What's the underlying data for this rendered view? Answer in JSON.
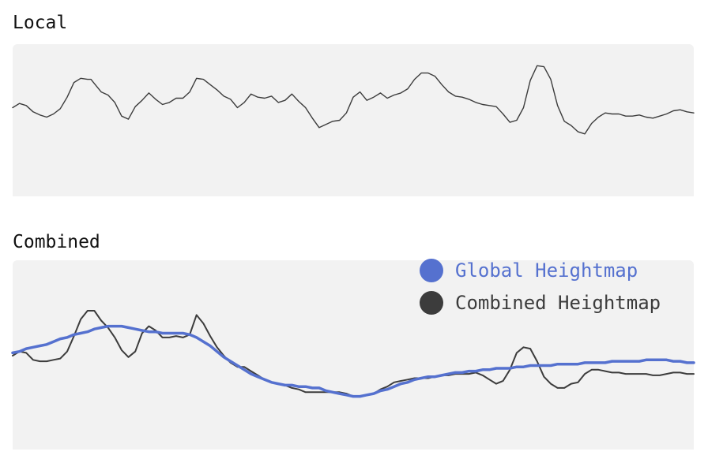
{
  "chart_data": [
    {
      "type": "area",
      "title": "Local",
      "x": [
        0,
        0.01,
        0.02,
        0.03,
        0.04,
        0.05,
        0.06,
        0.07,
        0.08,
        0.09,
        0.1,
        0.11,
        0.115,
        0.12,
        0.13,
        0.14,
        0.15,
        0.16,
        0.17,
        0.18,
        0.19,
        0.2,
        0.21,
        0.22,
        0.23,
        0.24,
        0.25,
        0.26,
        0.27,
        0.28,
        0.29,
        0.3,
        0.31,
        0.32,
        0.33,
        0.34,
        0.35,
        0.36,
        0.37,
        0.38,
        0.39,
        0.4,
        0.41,
        0.42,
        0.43,
        0.44,
        0.45,
        0.46,
        0.47,
        0.48,
        0.49,
        0.5,
        0.51,
        0.52,
        0.53,
        0.54,
        0.55,
        0.56,
        0.57,
        0.58,
        0.59,
        0.6,
        0.61,
        0.62,
        0.63,
        0.64,
        0.65,
        0.66,
        0.67,
        0.68,
        0.69,
        0.7,
        0.71,
        0.72,
        0.73,
        0.74,
        0.75,
        0.76,
        0.77,
        0.78,
        0.79,
        0.8,
        0.81,
        0.82,
        0.83,
        0.84,
        0.85,
        0.86,
        0.87,
        0.88,
        0.89,
        0.9,
        0.91,
        0.92,
        0.93,
        0.94,
        0.95,
        0.96,
        0.97,
        0.98,
        0.99,
        1.0
      ],
      "series": [
        {
          "values": [
            0.53,
            0.57,
            0.55,
            0.49,
            0.46,
            0.44,
            0.47,
            0.52,
            0.63,
            0.77,
            0.81,
            0.8,
            0.8,
            0.76,
            0.68,
            0.65,
            0.58,
            0.45,
            0.42,
            0.54,
            0.6,
            0.67,
            0.61,
            0.56,
            0.58,
            0.62,
            0.62,
            0.68,
            0.81,
            0.8,
            0.75,
            0.7,
            0.64,
            0.61,
            0.53,
            0.58,
            0.66,
            0.63,
            0.62,
            0.64,
            0.58,
            0.6,
            0.66,
            0.59,
            0.53,
            0.43,
            0.34,
            0.37,
            0.4,
            0.41,
            0.48,
            0.63,
            0.68,
            0.6,
            0.63,
            0.67,
            0.62,
            0.65,
            0.67,
            0.71,
            0.8,
            0.86,
            0.86,
            0.83,
            0.75,
            0.68,
            0.64,
            0.63,
            0.61,
            0.58,
            0.56,
            0.55,
            0.54,
            0.47,
            0.39,
            0.41,
            0.53,
            0.79,
            0.93,
            0.92,
            0.8,
            0.55,
            0.4,
            0.36,
            0.3,
            0.28,
            0.38,
            0.44,
            0.48,
            0.47,
            0.47,
            0.45,
            0.45,
            0.46,
            0.44,
            0.43,
            0.45,
            0.47,
            0.5,
            0.51,
            0.49,
            0.48
          ],
          "color": "#3c3c3c"
        }
      ],
      "ylim": [
        0,
        1
      ]
    },
    {
      "type": "area",
      "title": "Combined",
      "x": [
        0,
        0.01,
        0.02,
        0.03,
        0.04,
        0.05,
        0.06,
        0.07,
        0.08,
        0.09,
        0.1,
        0.11,
        0.115,
        0.12,
        0.13,
        0.14,
        0.15,
        0.16,
        0.17,
        0.18,
        0.19,
        0.2,
        0.21,
        0.22,
        0.23,
        0.24,
        0.25,
        0.26,
        0.27,
        0.28,
        0.29,
        0.3,
        0.31,
        0.32,
        0.33,
        0.34,
        0.35,
        0.36,
        0.37,
        0.38,
        0.39,
        0.4,
        0.41,
        0.42,
        0.43,
        0.44,
        0.45,
        0.46,
        0.47,
        0.48,
        0.49,
        0.5,
        0.51,
        0.52,
        0.53,
        0.54,
        0.55,
        0.56,
        0.57,
        0.58,
        0.59,
        0.6,
        0.61,
        0.62,
        0.63,
        0.64,
        0.65,
        0.66,
        0.67,
        0.68,
        0.69,
        0.7,
        0.71,
        0.72,
        0.73,
        0.74,
        0.75,
        0.76,
        0.77,
        0.78,
        0.79,
        0.8,
        0.81,
        0.82,
        0.83,
        0.84,
        0.85,
        0.86,
        0.87,
        0.88,
        0.89,
        0.9,
        0.91,
        0.92,
        0.93,
        0.94,
        0.95,
        0.96,
        0.97,
        0.98,
        0.99,
        1.0
      ],
      "series": [
        {
          "name": "Global Heightmap",
          "values": [
            0.52,
            0.53,
            0.55,
            0.56,
            0.57,
            0.58,
            0.6,
            0.62,
            0.63,
            0.65,
            0.66,
            0.67,
            0.68,
            0.69,
            0.7,
            0.71,
            0.71,
            0.71,
            0.7,
            0.69,
            0.68,
            0.67,
            0.67,
            0.66,
            0.66,
            0.66,
            0.66,
            0.65,
            0.63,
            0.6,
            0.57,
            0.53,
            0.49,
            0.46,
            0.43,
            0.4,
            0.37,
            0.35,
            0.33,
            0.31,
            0.3,
            0.29,
            0.29,
            0.28,
            0.28,
            0.27,
            0.27,
            0.25,
            0.24,
            0.23,
            0.22,
            0.21,
            0.21,
            0.22,
            0.23,
            0.25,
            0.26,
            0.28,
            0.3,
            0.31,
            0.33,
            0.34,
            0.35,
            0.35,
            0.36,
            0.37,
            0.38,
            0.38,
            0.39,
            0.39,
            0.4,
            0.4,
            0.41,
            0.41,
            0.41,
            0.42,
            0.42,
            0.43,
            0.43,
            0.43,
            0.43,
            0.44,
            0.44,
            0.44,
            0.44,
            0.45,
            0.45,
            0.45,
            0.45,
            0.46,
            0.46,
            0.46,
            0.46,
            0.46,
            0.47,
            0.47,
            0.47,
            0.47,
            0.46,
            0.46,
            0.45,
            0.45
          ],
          "color": "#5571cf"
        },
        {
          "name": "Combined Heightmap",
          "values": [
            0.5,
            0.53,
            0.52,
            0.47,
            0.46,
            0.46,
            0.47,
            0.48,
            0.53,
            0.64,
            0.76,
            0.82,
            0.82,
            0.82,
            0.75,
            0.7,
            0.63,
            0.54,
            0.49,
            0.53,
            0.66,
            0.71,
            0.68,
            0.63,
            0.63,
            0.64,
            0.63,
            0.65,
            0.79,
            0.73,
            0.64,
            0.56,
            0.5,
            0.45,
            0.42,
            0.42,
            0.39,
            0.36,
            0.33,
            0.31,
            0.3,
            0.29,
            0.27,
            0.26,
            0.24,
            0.24,
            0.24,
            0.24,
            0.24,
            0.24,
            0.23,
            0.21,
            0.21,
            0.22,
            0.23,
            0.26,
            0.28,
            0.31,
            0.32,
            0.33,
            0.34,
            0.34,
            0.34,
            0.35,
            0.36,
            0.36,
            0.37,
            0.37,
            0.37,
            0.38,
            0.36,
            0.33,
            0.3,
            0.32,
            0.4,
            0.52,
            0.56,
            0.55,
            0.46,
            0.35,
            0.3,
            0.27,
            0.27,
            0.3,
            0.31,
            0.37,
            0.4,
            0.4,
            0.39,
            0.38,
            0.38,
            0.37,
            0.37,
            0.37,
            0.37,
            0.36,
            0.36,
            0.37,
            0.38,
            0.38,
            0.37,
            0.37
          ],
          "color": "#3c3c3c"
        }
      ],
      "ylim": [
        0,
        1
      ],
      "legend_position": "top-right"
    }
  ]
}
